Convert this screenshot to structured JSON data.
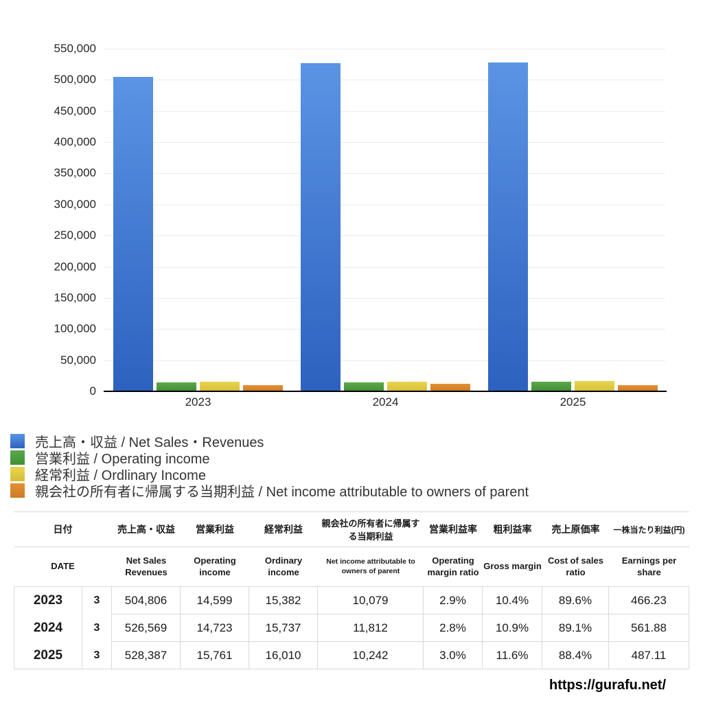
{
  "chart_data": {
    "type": "bar",
    "title": "",
    "xlabel": "",
    "ylabel": "",
    "categories": [
      "2023",
      "2024",
      "2025"
    ],
    "series": [
      {
        "name": "売上高・収益 / Net Sales・Revenues",
        "values": [
          504806,
          526569,
          528387
        ],
        "color_top": "#5b94e4",
        "color_bottom": "#2d61bf"
      },
      {
        "name": "営業利益 / Operating income",
        "values": [
          14599,
          14723,
          15761
        ],
        "color_top": "#5ca94b",
        "color_bottom": "#3f8e36"
      },
      {
        "name": "経常利益 / Ordlinary Income",
        "values": [
          15382,
          15737,
          16010
        ],
        "color_top": "#ead54e",
        "color_bottom": "#d6bd3a"
      },
      {
        "name": "親会社の所有者に帰属する当期利益 / Net income attributable to owners of parent",
        "values": [
          10079,
          11812,
          10242
        ],
        "color_top": "#e39134",
        "color_bottom": "#cf7a24"
      }
    ],
    "ylim": [
      0,
      550000
    ],
    "y_tick_step": 50000,
    "y_tick_labels": [
      "0",
      "50,000",
      "100,000",
      "150,000",
      "200,000",
      "250,000",
      "300,000",
      "350,000",
      "400,000",
      "450,000",
      "500,000",
      "550,000"
    ],
    "grid": true,
    "legend_position": "below"
  },
  "table": {
    "header_jp": [
      "日付",
      "売上高・収益",
      "営業利益",
      "経常利益",
      "親会社の所有者に帰属する当期利益",
      "営業利益率",
      "粗利益率",
      "売上原価率",
      "一株当たり利益(円)"
    ],
    "header_en": [
      "DATE",
      "Net Sales Revenues",
      "Operating income",
      "Ordinary income",
      "Net income attributable to owners of parent",
      "Operating margin ratio",
      "Gross margin",
      "Cost of sales ratio",
      "Earnings per share"
    ],
    "rows": [
      {
        "year": "2023",
        "month": "3",
        "values": [
          "504,806",
          "14,599",
          "15,382",
          "10,079",
          "2.9%",
          "10.4%",
          "89.6%",
          "466.23"
        ]
      },
      {
        "year": "2024",
        "month": "3",
        "values": [
          "526,569",
          "14,723",
          "15,737",
          "11,812",
          "2.8%",
          "10.9%",
          "89.1%",
          "561.88"
        ]
      },
      {
        "year": "2025",
        "month": "3",
        "values": [
          "528,387",
          "15,761",
          "16,010",
          "10,242",
          "3.0%",
          "11.6%",
          "88.4%",
          "487.11"
        ]
      }
    ]
  },
  "footer": {
    "url": "https://gurafu.net/"
  }
}
